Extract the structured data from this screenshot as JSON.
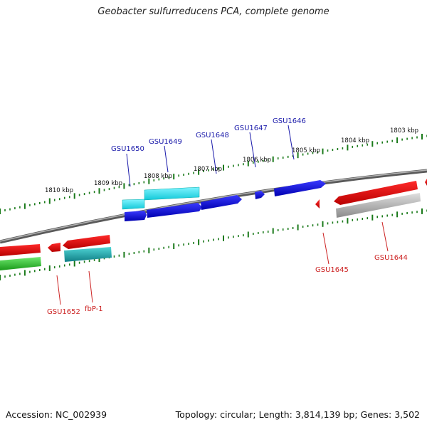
{
  "title": "Geobacter sulfurreducens PCA, complete genome",
  "footer": {
    "accession": "Accession: NC_002939",
    "summary": "Topology: circular; Length: 3,814,139 bp; Genes: 3,502"
  },
  "colors": {
    "backbone": "#888888",
    "ticks": "#1a7a1a",
    "forward_label": "#1a1aaa",
    "reverse_label": "#cc2222"
  },
  "ruler_labels": [
    "1803 kbp",
    "1804 kbp",
    "1805 kbp",
    "1806 kbp",
    "1807 kbp",
    "1808 kbp",
    "1809 kbp",
    "1810 kbp"
  ],
  "forward_gene_labels": [
    "GSU1646",
    "GSU1647",
    "GSU1648",
    "GSU1649",
    "GSU1650"
  ],
  "reverse_gene_labels": [
    "GSU1644",
    "GSU1645",
    "fbP-1",
    "GSU1652"
  ]
}
